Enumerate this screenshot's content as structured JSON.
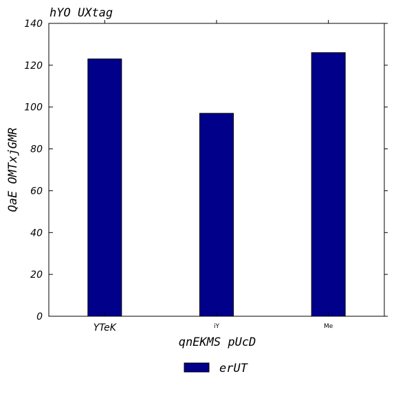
{
  "chart_data": {
    "type": "bar",
    "title": "hYO UXtag",
    "xlabel": "qnEKMS pUcD",
    "ylabel": "QaE OMTxjGMR",
    "categories": [
      "YTeK",
      "iY",
      "Me"
    ],
    "series": [
      {
        "name": "erUT",
        "values": [
          123,
          97,
          126
        ],
        "color": "#00008b"
      }
    ],
    "ylim": [
      0,
      140
    ],
    "yticks": [
      0,
      20,
      40,
      60,
      80,
      100,
      120,
      140
    ],
    "grid": false,
    "legend_position": "bottom-center"
  }
}
